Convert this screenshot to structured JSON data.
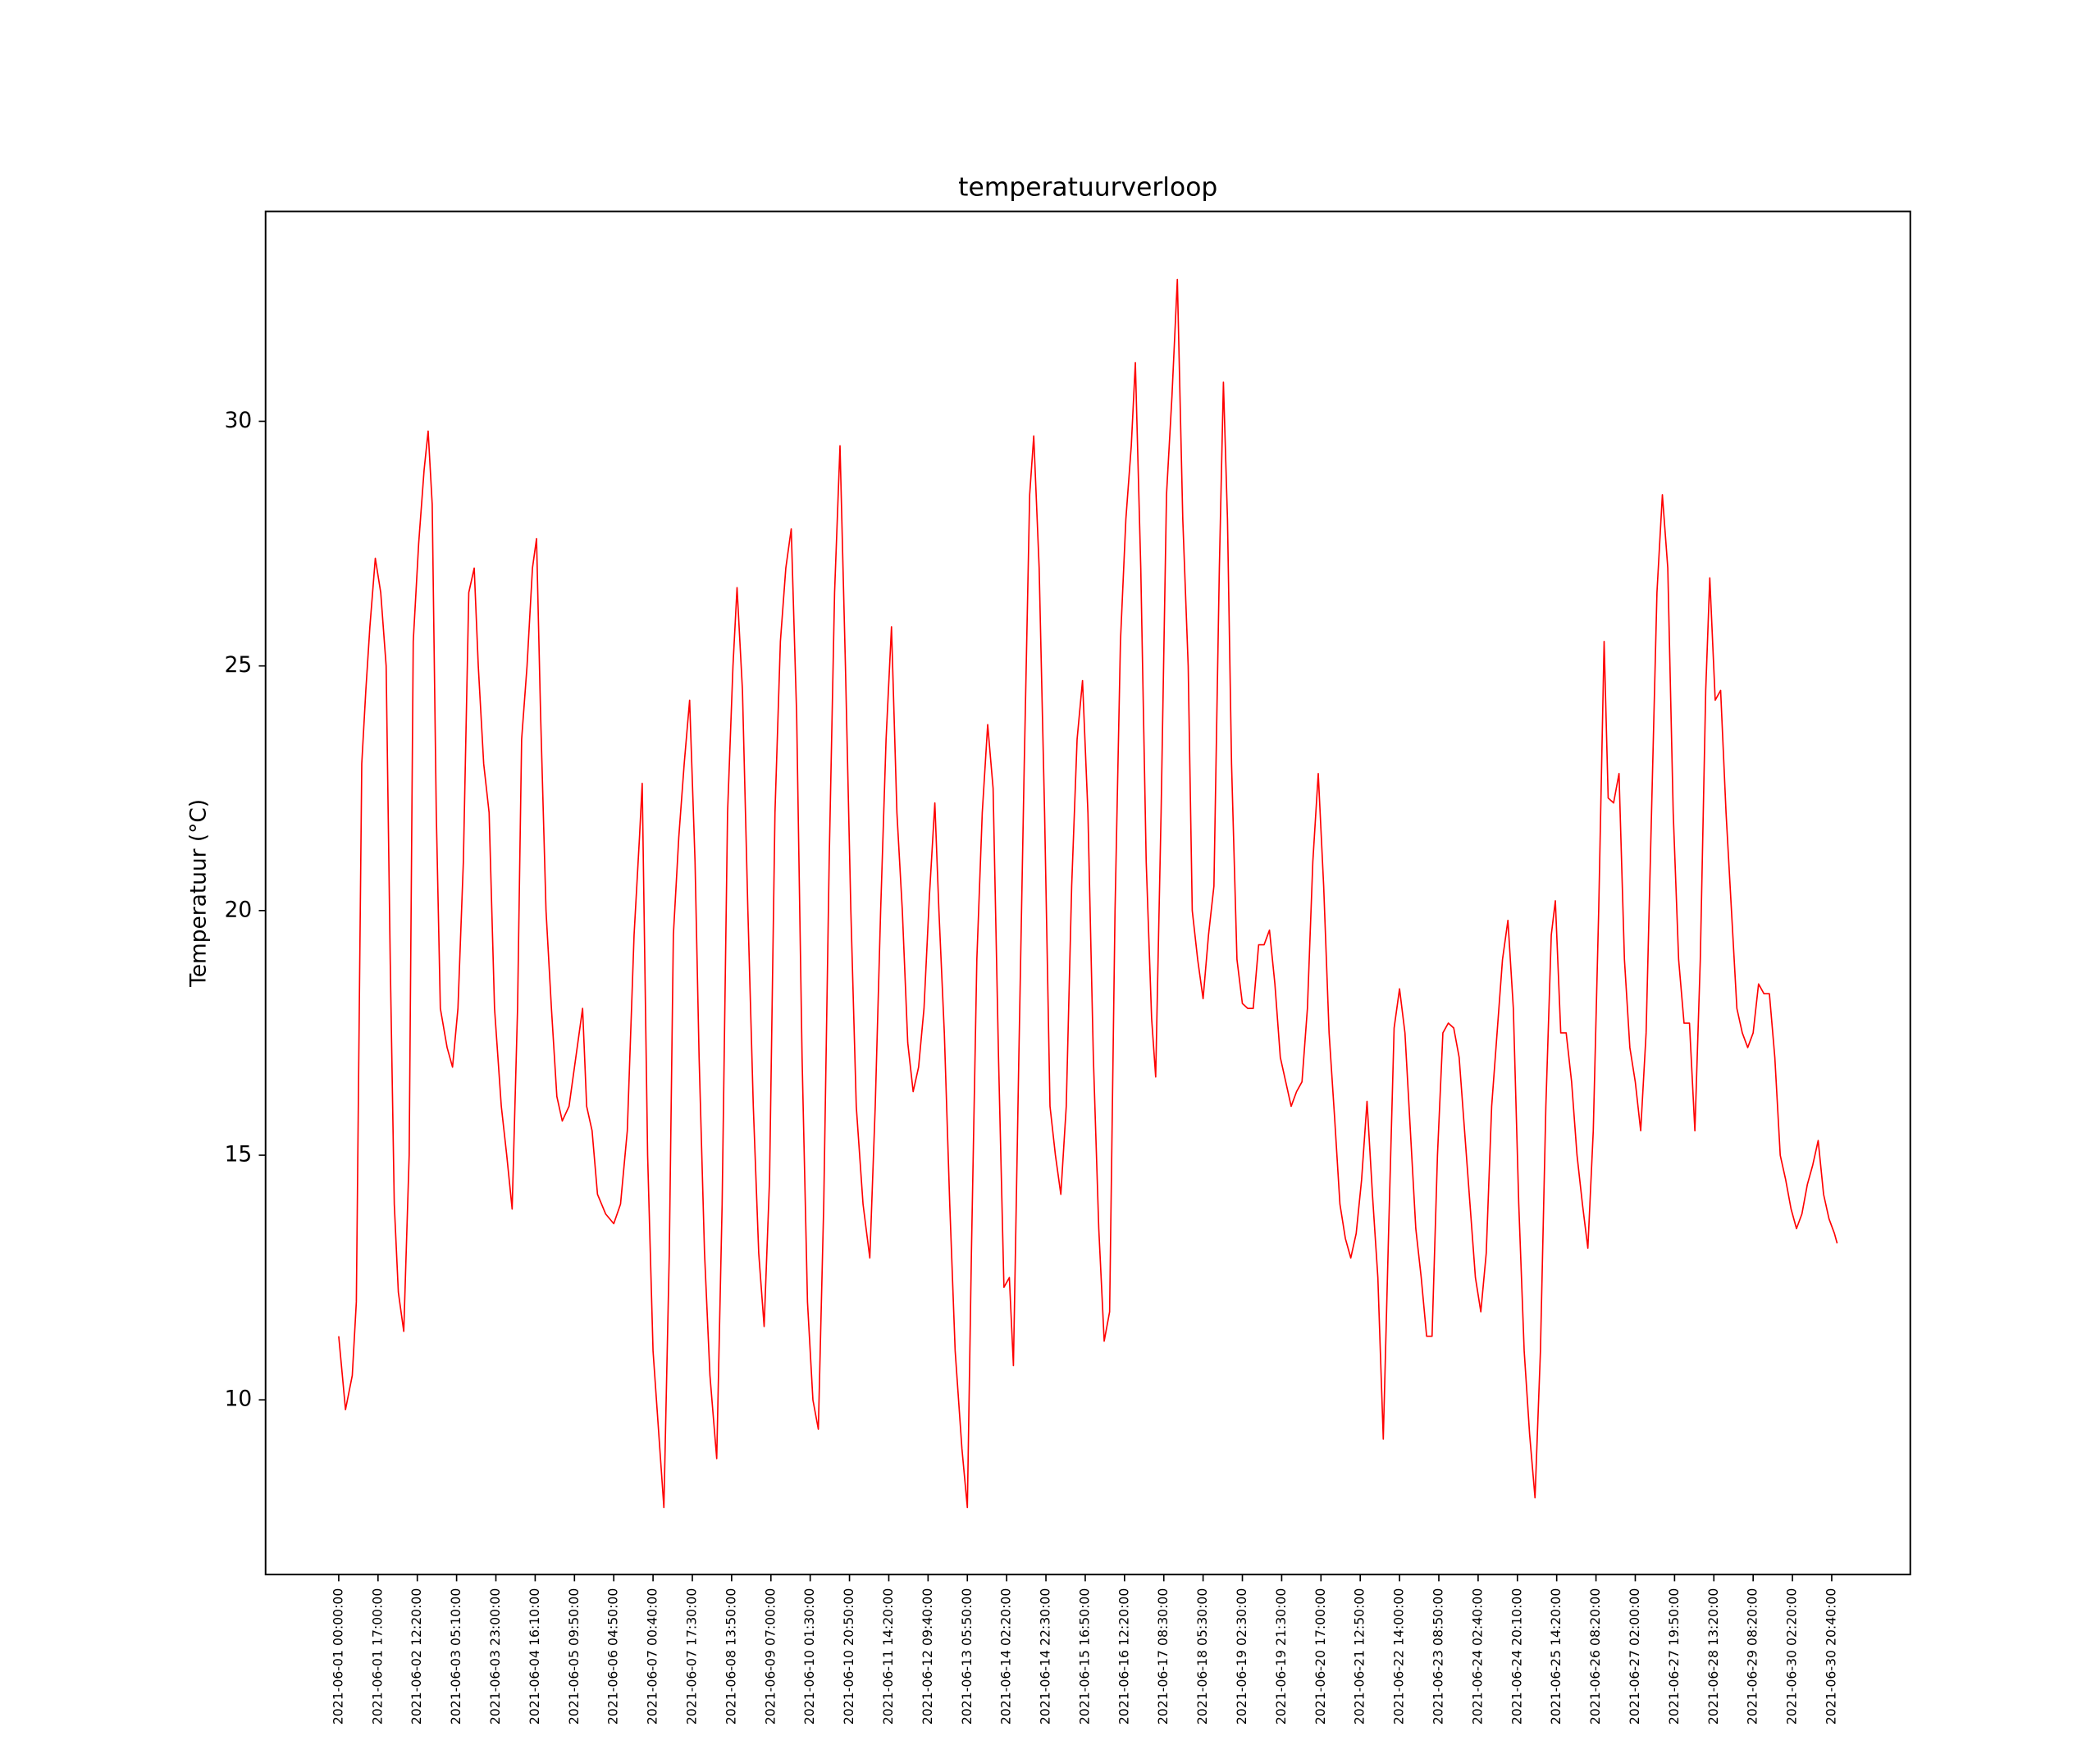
{
  "chart_data": {
    "type": "line",
    "title": "temperatuurverloop",
    "y_label": "Temperatuur (°C)",
    "color": "#ff0000",
    "x": [
      0,
      5,
      10,
      13,
      17,
      20,
      23,
      27,
      31,
      35,
      38,
      41,
      44,
      48,
      52,
      55,
      59,
      63,
      66,
      69,
      72,
      75,
      80,
      84,
      88,
      92,
      96,
      100,
      103,
      107,
      111,
      115,
      120,
      124,
      128,
      132,
      135,
      139,
      143,
      146,
      149,
      153,
      157,
      161,
      165,
      170,
      175,
      180,
      183,
      187,
      191,
      197,
      203,
      208,
      213,
      218,
      222,
      224,
      228,
      232,
      237,
      240,
      244,
      247,
      251,
      255,
      259,
      263,
      266,
      270,
      274,
      279,
      283,
      287,
      291,
      294,
      298,
      302,
      306,
      310,
      314,
      318,
      322,
      326,
      330,
      334,
      338,
      342,
      346,
      350,
      354,
      358,
      362,
      366,
      370,
      374,
      378,
      382,
      387,
      392,
      396,
      400,
      404,
      408,
      412,
      416,
      420,
      424,
      428,
      432,
      436,
      440,
      443,
      447,
      451,
      455,
      460,
      464,
      467,
      471,
      475,
      479,
      483,
      487,
      491,
      495,
      498,
      502,
      506,
      510,
      513,
      517,
      521,
      525,
      529,
      533,
      537,
      541,
      545,
      549,
      553,
      557,
      561,
      565,
      569,
      573,
      577,
      581,
      585,
      588,
      592,
      596,
      600,
      603,
      607,
      611,
      615,
      619,
      623,
      627,
      630,
      634,
      638,
      642,
      646,
      650,
      653,
      656,
      659,
      663,
      667,
      671,
      675,
      679,
      683,
      687,
      691,
      695,
      699,
      703,
      707,
      711,
      715,
      719,
      723,
      727,
      731,
      735,
      739,
      743,
      747,
      751,
      755,
      759,
      763,
      767,
      771,
      775,
      779,
      783,
      787,
      791,
      795,
      799,
      803,
      807,
      811,
      815,
      819,
      823,
      827,
      831,
      835,
      839,
      843,
      847,
      851,
      855,
      859,
      863,
      867,
      871,
      875,
      879,
      883,
      887,
      891,
      895,
      898,
      902,
      906,
      910,
      914,
      918,
      922,
      926,
      930,
      934,
      937,
      941,
      945,
      949,
      953,
      957,
      961,
      965,
      969,
      973,
      977,
      981,
      985,
      989,
      993,
      997,
      1001,
      1005,
      1009,
      1012,
      1016,
      1020,
      1024,
      1028,
      1032,
      1036,
      1040,
      1044,
      1048,
      1052,
      1056,
      1060,
      1064,
      1068,
      1072,
      1076,
      1080,
      1084,
      1088,
      1092,
      1096,
      1100,
      1104,
      1106
    ],
    "values": [
      11.3,
      9.8,
      10.5,
      12,
      23,
      24.5,
      25.8,
      27.2,
      26.5,
      25,
      19,
      14,
      12.2,
      11.4,
      15,
      25.5,
      27.5,
      29,
      29.8,
      28.3,
      22,
      18,
      17.2,
      16.8,
      18,
      21,
      26.5,
      27,
      25,
      23,
      22,
      18,
      16,
      15,
      13.9,
      18,
      23.5,
      25,
      27,
      27.6,
      24,
      20,
      18,
      16.2,
      15.7,
      16,
      17,
      18,
      16,
      15.5,
      14.2,
      13.8,
      13.6,
      14,
      15.5,
      19.5,
      21.5,
      22.6,
      15,
      11,
      9,
      7.8,
      13,
      19.5,
      21.5,
      23,
      24.3,
      21,
      17,
      13,
      10.5,
      8.8,
      14,
      22,
      25,
      26.6,
      24.5,
      20,
      16,
      13,
      11.5,
      14.5,
      22,
      25.5,
      27,
      27.8,
      24,
      17,
      12,
      10,
      9.4,
      14,
      21,
      26.5,
      29.5,
      25,
      20,
      16,
      14,
      12.9,
      16,
      20,
      23.5,
      25.8,
      22,
      20,
      17.3,
      16.3,
      16.8,
      18,
      20.3,
      22.2,
      20,
      17.5,
      14,
      11,
      9,
      7.8,
      13,
      19,
      22,
      23.8,
      22.5,
      17,
      12.3,
      12.5,
      10.7,
      17,
      23,
      28.5,
      29.7,
      27,
      22,
      16,
      15,
      14.2,
      16,
      20.5,
      23.5,
      24.7,
      22,
      17,
      13.5,
      11.2,
      11.8,
      20,
      25.5,
      28,
      29.5,
      31.2,
      27,
      21,
      17.8,
      16.6,
      22,
      28.5,
      30.5,
      32.9,
      28,
      25,
      20,
      19,
      18.2,
      19.5,
      20.5,
      27,
      30.8,
      28,
      23,
      19,
      18.1,
      18,
      18,
      19.3,
      19.3,
      19.6,
      18.5,
      17,
      16.5,
      16,
      16.3,
      16.5,
      18,
      21,
      22.8,
      20.5,
      17.5,
      15.8,
      14,
      13.3,
      12.9,
      13.4,
      14.5,
      16.1,
      14.2,
      12.5,
      9.2,
      13.5,
      17.6,
      18.4,
      17.5,
      15.5,
      13.5,
      12.5,
      11.3,
      11.3,
      15,
      17.5,
      17.7,
      17.6,
      17,
      15.5,
      14,
      12.5,
      11.8,
      13,
      16,
      17.5,
      19,
      19.8,
      18,
      14,
      11,
      9.3,
      8,
      11,
      16,
      19.5,
      20.2,
      17.5,
      17.5,
      16.5,
      15,
      14,
      13.1,
      15.5,
      20,
      25.5,
      22.3,
      22.2,
      22.8,
      19,
      17.2,
      16.5,
      15.5,
      17.5,
      22,
      26.5,
      28.5,
      27,
      22,
      19,
      17.7,
      17.7,
      15.5,
      19,
      24.5,
      26.8,
      24.3,
      24.5,
      22,
      20,
      18,
      17.5,
      17.2,
      17.5,
      18.5,
      18.3,
      18.3,
      17,
      15,
      14.5,
      13.9,
      13.5,
      13.8,
      14.4,
      14.8,
      15.3,
      14.2,
      13.7,
      13.4,
      13.2
    ],
    "xlim": [
      -54,
      1160
    ],
    "ylim": [
      6.43,
      34.29
    ],
    "yticks": [
      10,
      15,
      20,
      25,
      30
    ],
    "xticks": [
      {
        "value": 0,
        "label": "2021-06-01 00:00:00"
      },
      {
        "value": 29,
        "label": "2021-06-01 17:00:00"
      },
      {
        "value": 58,
        "label": "2021-06-02 12:20:00"
      },
      {
        "value": 87,
        "label": "2021-06-03 05:10:00"
      },
      {
        "value": 116,
        "label": "2021-06-03 23:00:00"
      },
      {
        "value": 145,
        "label": "2021-06-04 16:10:00"
      },
      {
        "value": 174,
        "label": "2021-06-05 09:50:00"
      },
      {
        "value": 203,
        "label": "2021-06-06 04:50:00"
      },
      {
        "value": 232,
        "label": "2021-06-07 00:40:00"
      },
      {
        "value": 261,
        "label": "2021-06-07 17:30:00"
      },
      {
        "value": 290,
        "label": "2021-06-08 13:50:00"
      },
      {
        "value": 319,
        "label": "2021-06-09 07:00:00"
      },
      {
        "value": 348,
        "label": "2021-06-10 01:30:00"
      },
      {
        "value": 377,
        "label": "2021-06-10 20:50:00"
      },
      {
        "value": 406,
        "label": "2021-06-11 14:20:00"
      },
      {
        "value": 435,
        "label": "2021-06-12 09:40:00"
      },
      {
        "value": 464,
        "label": "2021-06-13 05:50:00"
      },
      {
        "value": 493,
        "label": "2021-06-14 02:20:00"
      },
      {
        "value": 522,
        "label": "2021-06-14 22:30:00"
      },
      {
        "value": 551,
        "label": "2021-06-15 16:50:00"
      },
      {
        "value": 580,
        "label": "2021-06-16 12:20:00"
      },
      {
        "value": 609,
        "label": "2021-06-17 08:30:00"
      },
      {
        "value": 638,
        "label": "2021-06-18 05:30:00"
      },
      {
        "value": 667,
        "label": "2021-06-19 02:30:00"
      },
      {
        "value": 696,
        "label": "2021-06-19 21:30:00"
      },
      {
        "value": 725,
        "label": "2021-06-20 17:00:00"
      },
      {
        "value": 754,
        "label": "2021-06-21 12:50:00"
      },
      {
        "value": 783,
        "label": "2021-06-22 14:00:00"
      },
      {
        "value": 812,
        "label": "2021-06-23 08:50:00"
      },
      {
        "value": 841,
        "label": "2021-06-24 02:40:00"
      },
      {
        "value": 870,
        "label": "2021-06-24 20:10:00"
      },
      {
        "value": 899,
        "label": "2021-06-25 14:20:00"
      },
      {
        "value": 928,
        "label": "2021-06-26 08:20:00"
      },
      {
        "value": 957,
        "label": "2021-06-27 02:00:00"
      },
      {
        "value": 986,
        "label": "2021-06-27 19:50:00"
      },
      {
        "value": 1015,
        "label": "2021-06-28 13:20:00"
      },
      {
        "value": 1044,
        "label": "2021-06-29 08:20:00"
      },
      {
        "value": 1073,
        "label": "2021-06-30 02:20:00"
      },
      {
        "value": 1102,
        "label": "2021-06-30 20:40:00"
      }
    ]
  }
}
